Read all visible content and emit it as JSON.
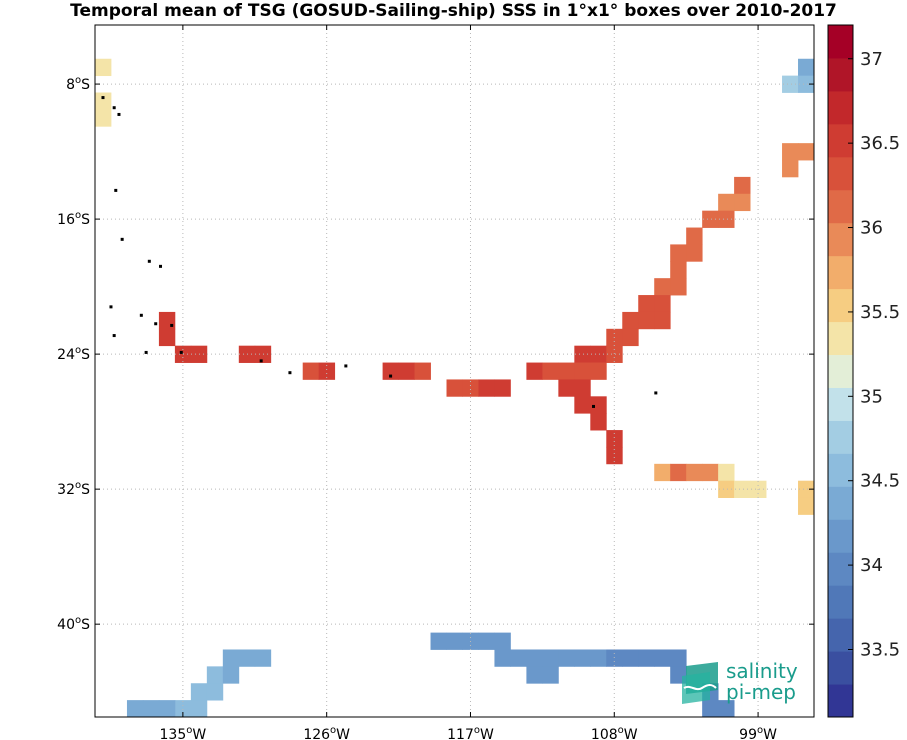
{
  "title": "Temporal mean of TSG (GOSUD-Sailing-ship) SSS in 1°x1° boxes over 2010-2017",
  "logo": {
    "line1": "salinity",
    "line2": "pi-mep"
  },
  "chart_data": {
    "type": "heatmap",
    "title": "Temporal mean of TSG (GOSUD-Sailing-ship) SSS in 1°x1° boxes over 2010-2017",
    "xlim": [
      -140.5,
      -95.5
    ],
    "ylim": [
      -45.5,
      -4.5
    ],
    "x_ticks": [
      {
        "value": -135,
        "label": "135",
        "sup": "o",
        "hemi": "W"
      },
      {
        "value": -126,
        "label": "126",
        "sup": "o",
        "hemi": "W"
      },
      {
        "value": -117,
        "label": "117",
        "sup": "o",
        "hemi": "W"
      },
      {
        "value": -108,
        "label": "108",
        "sup": "o",
        "hemi": "W"
      },
      {
        "value": -99,
        "label": "99",
        "sup": "o",
        "hemi": "W"
      }
    ],
    "y_ticks": [
      {
        "value": -8,
        "label": "8",
        "sup": "o",
        "hemi": "S"
      },
      {
        "value": -16,
        "label": "16",
        "sup": "o",
        "hemi": "S"
      },
      {
        "value": -24,
        "label": "24",
        "sup": "o",
        "hemi": "S"
      },
      {
        "value": -32,
        "label": "32",
        "sup": "o",
        "hemi": "S"
      },
      {
        "value": -40,
        "label": "40",
        "sup": "o",
        "hemi": "S"
      }
    ],
    "grid": true,
    "colorbar": {
      "range": [
        33.1,
        37.2
      ],
      "ticks": [
        "33.5",
        "34",
        "34.5",
        "35",
        "35.5",
        "36",
        "36.5",
        "37"
      ],
      "levels": [
        "#313695",
        "#3a4fa0",
        "#4565ad",
        "#5078b8",
        "#5d88c2",
        "#6a98cb",
        "#7aaad4",
        "#8dbcdd",
        "#a3cde3",
        "#c2e1ea",
        "#e3eed7",
        "#f4e4a8",
        "#f6cd82",
        "#f2ad6b",
        "#e98a58",
        "#e06a47",
        "#d8513a",
        "#cf3c32",
        "#c2282b",
        "#b01528",
        "#a50026"
      ]
    },
    "cells": [
      {
        "lon": -140,
        "lat": -7,
        "v": 35.4
      },
      {
        "lon": -140,
        "lat": -9,
        "v": 35.4
      },
      {
        "lon": -140,
        "lat": -10,
        "v": 35.4
      },
      {
        "lon": -96,
        "lat": -7,
        "v": 34.3
      },
      {
        "lon": -97,
        "lat": -8,
        "v": 34.7
      },
      {
        "lon": -96,
        "lat": -8,
        "v": 34.6
      },
      {
        "lon": -96,
        "lat": -12,
        "v": 35.9
      },
      {
        "lon": -97,
        "lat": -12,
        "v": 35.9
      },
      {
        "lon": -97,
        "lat": -13,
        "v": 35.9
      },
      {
        "lon": -100,
        "lat": -14,
        "v": 36.1
      },
      {
        "lon": -101,
        "lat": -15,
        "v": 35.9
      },
      {
        "lon": -100,
        "lat": -15,
        "v": 35.9
      },
      {
        "lon": -102,
        "lat": -16,
        "v": 36.2
      },
      {
        "lon": -101,
        "lat": -16,
        "v": 36.2
      },
      {
        "lon": -103,
        "lat": -17,
        "v": 36.2
      },
      {
        "lon": -104,
        "lat": -18,
        "v": 36.2
      },
      {
        "lon": -103,
        "lat": -18,
        "v": 36.2
      },
      {
        "lon": -104,
        "lat": -19,
        "v": 36.2
      },
      {
        "lon": -105,
        "lat": -20,
        "v": 36.2
      },
      {
        "lon": -104,
        "lat": -20,
        "v": 36.2
      },
      {
        "lon": -106,
        "lat": -21,
        "v": 36.3
      },
      {
        "lon": -105,
        "lat": -21,
        "v": 36.3
      },
      {
        "lon": -107,
        "lat": -22,
        "v": 36.4
      },
      {
        "lon": -106,
        "lat": -22,
        "v": 36.4
      },
      {
        "lon": -105,
        "lat": -22,
        "v": 36.4
      },
      {
        "lon": -108,
        "lat": -23,
        "v": 36.4
      },
      {
        "lon": -107,
        "lat": -23,
        "v": 36.4
      },
      {
        "lon": -110,
        "lat": -24,
        "v": 36.5
      },
      {
        "lon": -109,
        "lat": -24,
        "v": 36.6
      },
      {
        "lon": -108,
        "lat": -24,
        "v": 36.4
      },
      {
        "lon": -113,
        "lat": -25,
        "v": 36.5
      },
      {
        "lon": -112,
        "lat": -25,
        "v": 36.4
      },
      {
        "lon": -111,
        "lat": -25,
        "v": 36.4
      },
      {
        "lon": -110,
        "lat": -25,
        "v": 36.4
      },
      {
        "lon": -109,
        "lat": -25,
        "v": 36.4
      },
      {
        "lon": -111,
        "lat": -26,
        "v": 36.5
      },
      {
        "lon": -110,
        "lat": -26,
        "v": 36.5
      },
      {
        "lon": -110,
        "lat": -27,
        "v": 36.6
      },
      {
        "lon": -109,
        "lat": -27,
        "v": 36.6
      },
      {
        "lon": -109,
        "lat": -28,
        "v": 36.6
      },
      {
        "lon": -108,
        "lat": -29,
        "v": 36.6
      },
      {
        "lon": -108,
        "lat": -30,
        "v": 36.5
      },
      {
        "lon": -136,
        "lat": -22,
        "v": 36.6
      },
      {
        "lon": -136,
        "lat": -23,
        "v": 36.6
      },
      {
        "lon": -135,
        "lat": -24,
        "v": 36.5
      },
      {
        "lon": -134,
        "lat": -24,
        "v": 36.5
      },
      {
        "lon": -131,
        "lat": -24,
        "v": 36.5
      },
      {
        "lon": -130,
        "lat": -24,
        "v": 36.5
      },
      {
        "lon": -127,
        "lat": -25,
        "v": 36.3
      },
      {
        "lon": -126,
        "lat": -25,
        "v": 36.5
      },
      {
        "lon": -122,
        "lat": -25,
        "v": 36.5
      },
      {
        "lon": -121,
        "lat": -25,
        "v": 36.5
      },
      {
        "lon": -120,
        "lat": -25,
        "v": 36.3
      },
      {
        "lon": -118,
        "lat": -26,
        "v": 36.4
      },
      {
        "lon": -117,
        "lat": -26,
        "v": 36.4
      },
      {
        "lon": -116,
        "lat": -26,
        "v": 36.5
      },
      {
        "lon": -115,
        "lat": -26,
        "v": 36.5
      },
      {
        "lon": -105,
        "lat": -31,
        "v": 35.7
      },
      {
        "lon": -104,
        "lat": -31,
        "v": 36.2
      },
      {
        "lon": -103,
        "lat": -31,
        "v": 35.9
      },
      {
        "lon": -102,
        "lat": -31,
        "v": 35.9
      },
      {
        "lon": -101,
        "lat": -31,
        "v": 35.4
      },
      {
        "lon": -101,
        "lat": -32,
        "v": 35.6
      },
      {
        "lon": -100,
        "lat": -32,
        "v": 35.4
      },
      {
        "lon": -99,
        "lat": -32,
        "v": 35.4
      },
      {
        "lon": -96,
        "lat": -32,
        "v": 35.5
      },
      {
        "lon": -96,
        "lat": -33,
        "v": 35.5
      },
      {
        "lon": -132,
        "lat": -42,
        "v": 34.4
      },
      {
        "lon": -131,
        "lat": -42,
        "v": 34.3
      },
      {
        "lon": -130,
        "lat": -42,
        "v": 34.3
      },
      {
        "lon": -133,
        "lat": -43,
        "v": 34.5
      },
      {
        "lon": -132,
        "lat": -43,
        "v": 34.4
      },
      {
        "lon": -134,
        "lat": -44,
        "v": 34.5
      },
      {
        "lon": -133,
        "lat": -44,
        "v": 34.5
      },
      {
        "lon": -135,
        "lat": -45,
        "v": 34.5
      },
      {
        "lon": -134,
        "lat": -45,
        "v": 34.5
      },
      {
        "lon": -138,
        "lat": -45,
        "v": 34.4
      },
      {
        "lon": -137,
        "lat": -45,
        "v": 34.3
      },
      {
        "lon": -136,
        "lat": -45,
        "v": 34.3
      },
      {
        "lon": -119,
        "lat": -41,
        "v": 34.1
      },
      {
        "lon": -118,
        "lat": -41,
        "v": 34.1
      },
      {
        "lon": -117,
        "lat": -41,
        "v": 34.1
      },
      {
        "lon": -116,
        "lat": -41,
        "v": 34.1
      },
      {
        "lon": -115,
        "lat": -41,
        "v": 34.1
      },
      {
        "lon": -115,
        "lat": -42,
        "v": 34.2
      },
      {
        "lon": -114,
        "lat": -42,
        "v": 34.2
      },
      {
        "lon": -113,
        "lat": -42,
        "v": 34.2
      },
      {
        "lon": -112,
        "lat": -42,
        "v": 34.2
      },
      {
        "lon": -111,
        "lat": -42,
        "v": 34.2
      },
      {
        "lon": -110,
        "lat": -42,
        "v": 34.2
      },
      {
        "lon": -109,
        "lat": -42,
        "v": 34.2
      },
      {
        "lon": -108,
        "lat": -42,
        "v": 34.0
      },
      {
        "lon": -107,
        "lat": -42,
        "v": 34.0
      },
      {
        "lon": -106,
        "lat": -42,
        "v": 34.0
      },
      {
        "lon": -105,
        "lat": -42,
        "v": 34.0
      },
      {
        "lon": -104,
        "lat": -42,
        "v": 34.0
      },
      {
        "lon": -113,
        "lat": -43,
        "v": 34.2
      },
      {
        "lon": -112,
        "lat": -43,
        "v": 34.2
      },
      {
        "lon": -104,
        "lat": -43,
        "v": 34.0
      },
      {
        "lon": -102,
        "lat": -44,
        "v": 34.0
      },
      {
        "lon": -102,
        "lat": -45,
        "v": 34.0
      },
      {
        "lon": -101,
        "lat": -45,
        "v": 33.9
      }
    ],
    "islands": [
      {
        "lon": -140,
        "lat": -8.8
      },
      {
        "lon": -139.3,
        "lat": -9.4
      },
      {
        "lon": -139.0,
        "lat": -9.8
      },
      {
        "lon": -139.2,
        "lat": -14.3
      },
      {
        "lon": -138.8,
        "lat": -17.2
      },
      {
        "lon": -137.1,
        "lat": -18.5
      },
      {
        "lon": -136.4,
        "lat": -18.8
      },
      {
        "lon": -139.5,
        "lat": -21.2
      },
      {
        "lon": -137.6,
        "lat": -21.7
      },
      {
        "lon": -136.7,
        "lat": -22.2
      },
      {
        "lon": -135.7,
        "lat": -22.3
      },
      {
        "lon": -139.3,
        "lat": -22.9
      },
      {
        "lon": -137.3,
        "lat": -23.9
      },
      {
        "lon": -135.1,
        "lat": -23.9
      },
      {
        "lon": -130.1,
        "lat": -24.4
      },
      {
        "lon": -128.3,
        "lat": -25.1
      },
      {
        "lon": -124.8,
        "lat": -24.7
      },
      {
        "lon": -122.0,
        "lat": -25.3
      },
      {
        "lon": -109.3,
        "lat": -27.1
      },
      {
        "lon": -105.4,
        "lat": -26.3
      }
    ]
  }
}
